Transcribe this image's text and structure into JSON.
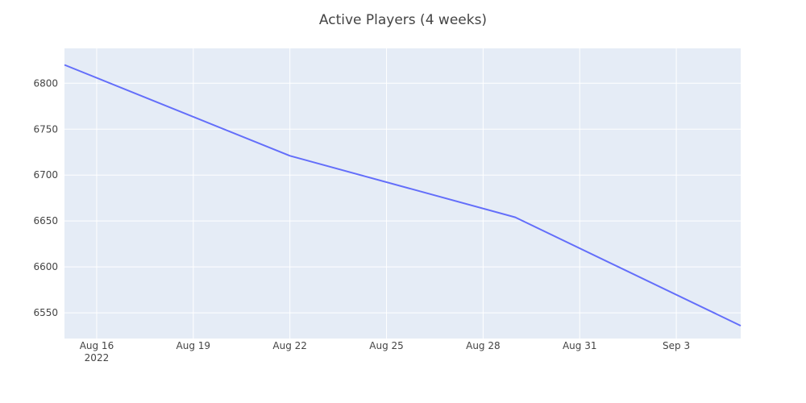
{
  "chart_data": {
    "type": "line",
    "title": "Active Players (4 weeks)",
    "xlabel": "",
    "ylabel": "",
    "x_tick_labels": [
      "Aug 16",
      "Aug 19",
      "Aug 22",
      "Aug 25",
      "Aug 28",
      "Aug 31",
      "Sep 3"
    ],
    "x_tick_year": "2022",
    "y_tick_labels": [
      "6550",
      "6600",
      "6650",
      "6700",
      "6750",
      "6800"
    ],
    "xlim": [
      "2022-08-15",
      "2022-09-05"
    ],
    "ylim": [
      6522,
      6838
    ],
    "grid": true,
    "line_color": "#636efa",
    "plot_background": "#e5ecf6",
    "series": [
      {
        "x": [
          "2022-08-15",
          "2022-08-22",
          "2022-08-29",
          "2022-09-05"
        ],
        "y": [
          6820,
          6721,
          6654,
          6536
        ]
      }
    ]
  }
}
